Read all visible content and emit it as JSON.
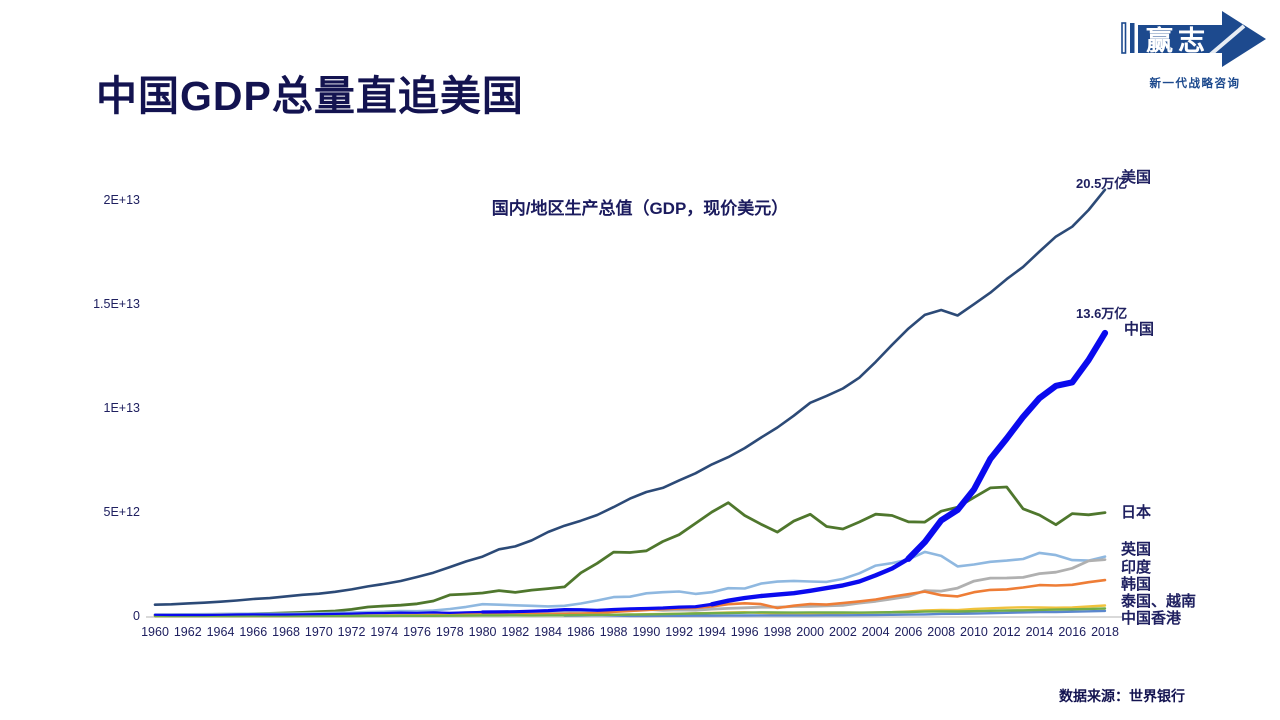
{
  "header": {
    "title": "中国GDP总量直追美国"
  },
  "logo": {
    "brand": "赢志",
    "tagline": "新一代战略咨询",
    "color": "#1d4a8e"
  },
  "footer": {
    "source": "数据来源：世界银行"
  },
  "chart_data": {
    "type": "line",
    "title": "国内/地区生产总值（GDP，现价美元）",
    "values_unit": "billion USD (1e9)",
    "xlim": [
      1960,
      2018
    ],
    "ylim": [
      0,
      21000000000000.0
    ],
    "grid": false,
    "legend_position": "line-end-labels-right",
    "x": [
      1960,
      1961,
      1962,
      1963,
      1964,
      1965,
      1966,
      1967,
      1968,
      1969,
      1970,
      1971,
      1972,
      1973,
      1974,
      1975,
      1976,
      1977,
      1978,
      1979,
      1980,
      1981,
      1982,
      1983,
      1984,
      1985,
      1986,
      1987,
      1988,
      1989,
      1990,
      1991,
      1992,
      1993,
      1994,
      1995,
      1996,
      1997,
      1998,
      1999,
      2000,
      2001,
      2002,
      2003,
      2004,
      2005,
      2006,
      2007,
      2008,
      2009,
      2010,
      2011,
      2012,
      2013,
      2014,
      2015,
      2016,
      2017,
      2018
    ],
    "x_tick_labels": [
      "1960",
      "1962",
      "1964",
      "1966",
      "1968",
      "1970",
      "1972",
      "1974",
      "1976",
      "1978",
      "1980",
      "1982",
      "1984",
      "1986",
      "1988",
      "1990",
      "1992",
      "1994",
      "1996",
      "1998",
      "2000",
      "2002",
      "2004",
      "2006",
      "2008",
      "2010",
      "2012",
      "2014",
      "2016",
      "2018"
    ],
    "y_ticks": [
      {
        "label": "0",
        "billions": 0
      },
      {
        "label": "5E+12",
        "billions": 5000
      },
      {
        "label": "1E+13",
        "billions": 10000
      },
      {
        "label": "1.5E+13",
        "billions": 15000
      },
      {
        "label": "2E+13",
        "billions": 20000
      }
    ],
    "series": [
      {
        "id": "usa",
        "name": "美国",
        "color": "#2c4a77",
        "width": 2.6,
        "end_label_value": "20.5万亿",
        "end_label": "美国",
        "values": [
          543,
          563,
          605,
          639,
          686,
          744,
          815,
          862,
          943,
          1019,
          1073,
          1165,
          1279,
          1425,
          1545,
          1685,
          1873,
          2082,
          2352,
          2627,
          2857,
          3207,
          3344,
          3634,
          4038,
          4339,
          4580,
          4855,
          5236,
          5642,
          5963,
          6158,
          6520,
          6859,
          7287,
          7640,
          8073,
          8578,
          9063,
          9631,
          10252,
          10582,
          10936,
          11458,
          12217,
          13039,
          13816,
          14474,
          14713,
          14449,
          14992,
          15543,
          16197,
          16785,
          17522,
          18238,
          18715,
          19519,
          20494
        ]
      },
      {
        "id": "china",
        "name": "中国",
        "color": "#0a0aee",
        "width": 5,
        "draw_last": true,
        "end_label_value": "13.6万亿",
        "end_label": "中国",
        "width_segments": [
          {
            "from": 1960,
            "to": 1980,
            "w": 2.2
          },
          {
            "from": 1980,
            "to": 1994,
            "w": 3.2
          },
          {
            "from": 1994,
            "to": 2006,
            "w": 4.4
          },
          {
            "from": 2006,
            "to": 2018,
            "w": 6.2
          }
        ],
        "values": [
          60,
          50,
          47,
          50,
          60,
          70,
          77,
          73,
          71,
          80,
          93,
          99,
          114,
          138,
          144,
          163,
          154,
          175,
          149,
          178,
          191,
          196,
          205,
          231,
          260,
          310,
          301,
          273,
          312,
          348,
          361,
          383,
          427,
          445,
          564,
          734,
          864,
          961,
          1029,
          1094,
          1211,
          1339,
          1471,
          1660,
          1955,
          2286,
          2752,
          3552,
          4594,
          5102,
          6087,
          7552,
          8532,
          9570,
          10476,
          11062,
          11233,
          12310,
          13608
        ]
      },
      {
        "id": "japan",
        "name": "日本",
        "color": "#4f772d",
        "width": 2.8,
        "end_label": "日本",
        "values": [
          44,
          54,
          61,
          70,
          82,
          91,
          106,
          124,
          147,
          172,
          213,
          240,
          318,
          432,
          480,
          521,
          586,
          721,
          1014,
          1055,
          1105,
          1219,
          1135,
          1243,
          1318,
          1399,
          2079,
          2533,
          3072,
          3054,
          3133,
          3584,
          3909,
          4454,
          4999,
          5449,
          4834,
          4415,
          4033,
          4562,
          4888,
          4304,
          4183,
          4519,
          4893,
          4831,
          4530,
          4515,
          5038,
          5231,
          5700,
          6157,
          6203,
          5156,
          4850,
          4389,
          4923,
          4867,
          4971
        ]
      },
      {
        "id": "uk",
        "name": "英国",
        "color": "#8fb8e0",
        "width": 2.6,
        "end_label": "英国",
        "values": [
          73,
          77,
          81,
          86,
          94,
          101,
          107,
          111,
          105,
          113,
          131,
          148,
          170,
          192,
          206,
          242,
          233,
          266,
          336,
          439,
          565,
          541,
          515,
          489,
          462,
          489,
          602,
          745,
          910,
          927,
          1093,
          1143,
          1180,
          1062,
          1142,
          1335,
          1320,
          1560,
          1652,
          1687,
          1658,
          1640,
          1784,
          2054,
          2421,
          2544,
          2714,
          3084,
          2891,
          2383,
          2475,
          2608,
          2662,
          2740,
          3035,
          2928,
          2689,
          2662,
          2855
        ]
      },
      {
        "id": "india",
        "name": "印度",
        "color": "#b0b0b0",
        "width": 2.8,
        "end_label": "印度",
        "values": [
          37,
          39,
          42,
          48,
          57,
          59,
          46,
          50,
          53,
          58,
          62,
          67,
          71,
          85,
          99,
          98,
          103,
          121,
          137,
          152,
          186,
          193,
          201,
          218,
          212,
          233,
          248,
          279,
          297,
          296,
          321,
          270,
          288,
          279,
          333,
          366,
          393,
          423,
          421,
          459,
          468,
          485,
          515,
          618,
          709,
          820,
          940,
          1217,
          1199,
          1342,
          1676,
          1823,
          1828,
          1857,
          2039,
          2104,
          2295,
          2651,
          2713
        ]
      },
      {
        "id": "korea",
        "name": "韩国",
        "color": "#ee7d36",
        "width": 2.6,
        "end_label": "韩国",
        "values": [
          4.0,
          2.4,
          2.8,
          3.9,
          3.5,
          3.1,
          4.3,
          5.2,
          6.2,
          7.5,
          9.0,
          9.9,
          10.8,
          13.9,
          19.5,
          21.7,
          29.8,
          38.2,
          51.4,
          66.6,
          65.4,
          72.9,
          77.8,
          87.0,
          97.5,
          101.3,
          116.0,
          146.1,
          199.6,
          246.9,
          283.4,
          330.7,
          356.1,
          392.7,
          463.6,
          566.6,
          610.2,
          569.8,
          383.3,
          497.5,
          576.2,
          547.7,
          627.2,
          702.7,
          793.1,
          934.9,
          1053.2,
          1172.6,
          1002.2,
          944.3,
          1144.1,
          1253.2,
          1278.0,
          1370.8,
          1484.3,
          1465.8,
          1500.1,
          1623.9,
          1724.8
        ]
      },
      {
        "id": "thailand",
        "name": "泰国",
        "color": "#f0c23c",
        "width": 2.4,
        "end_label": "泰国、越南",
        "values": [
          2.8,
          3.0,
          3.3,
          3.5,
          4.1,
          4.6,
          5.3,
          6.1,
          6.5,
          7.1,
          7.4,
          7.8,
          8.2,
          10.8,
          13.7,
          14.9,
          17.0,
          19.8,
          24.0,
          27.4,
          33.4,
          35.6,
          36.6,
          40.0,
          41.8,
          40.2,
          43.1,
          50.5,
          61.7,
          72.3,
          85.3,
          98.2,
          111.5,
          128.9,
          146.7,
          169.3,
          183.0,
          150.2,
          113.7,
          126.7,
          126.4,
          120.3,
          134.3,
          152.3,
          172.9,
          189.3,
          221.8,
          262.9,
          291.4,
          281.7,
          341.1,
          370.8,
          397.6,
          420.3,
          407.3,
          401.3,
          413.4,
          456.4,
          506.6
        ]
      },
      {
        "id": "vietnam",
        "name": "越南",
        "color": "#5b87cd",
        "width": 2.4,
        "end_label": "",
        "values": [
          null,
          null,
          null,
          null,
          null,
          null,
          null,
          null,
          null,
          null,
          null,
          null,
          null,
          null,
          null,
          null,
          null,
          null,
          null,
          null,
          null,
          null,
          null,
          null,
          null,
          14.1,
          26.3,
          36.7,
          25.4,
          6.3,
          6.5,
          9.6,
          9.9,
          13.2,
          16.3,
          20.7,
          24.7,
          26.8,
          27.2,
          28.7,
          31.2,
          32.7,
          35.1,
          39.6,
          45.4,
          57.6,
          66.4,
          77.4,
          99.1,
          106.0,
          115.9,
          135.5,
          155.8,
          171.2,
          186.2,
          193.2,
          205.3,
          223.8,
          245.2
        ]
      },
      {
        "id": "hongkong",
        "name": "中国香港",
        "color": "#71ad49",
        "width": 2.4,
        "end_label": "中国香港",
        "values": [
          1.3,
          1.4,
          1.7,
          1.9,
          2.2,
          2.4,
          2.7,
          3.0,
          3.1,
          3.4,
          3.8,
          4.5,
          5.1,
          6.5,
          7.2,
          8.1,
          9.4,
          11.6,
          14.1,
          19.3,
          28.9,
          31.1,
          32.4,
          29.9,
          33.5,
          35.7,
          41.1,
          50.6,
          59.7,
          68.8,
          76.9,
          88.9,
          104.3,
          120.4,
          135.8,
          144.7,
          159.7,
          177.4,
          166.9,
          165.8,
          171.7,
          169.4,
          166.3,
          161.4,
          169.1,
          181.6,
          193.5,
          211.6,
          219.3,
          214.0,
          228.6,
          248.5,
          262.6,
          275.7,
          291.5,
          309.4,
          320.9,
          341.3,
          361.7
        ]
      }
    ],
    "source": "数据来源：世界银行"
  }
}
